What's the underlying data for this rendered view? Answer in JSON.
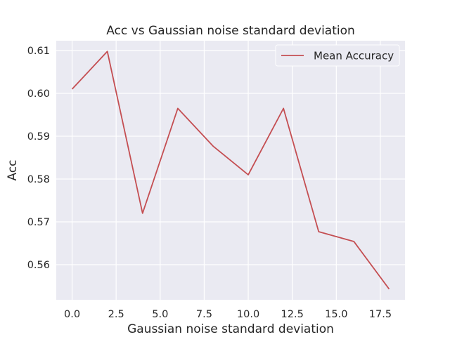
{
  "chart_data": {
    "type": "line",
    "title": "Acc vs Gaussian noise standard deviation",
    "xlabel": "Gaussian noise standard deviation",
    "ylabel": "Acc",
    "x": [
      0,
      2,
      4,
      6,
      8,
      10,
      12,
      14,
      16,
      18
    ],
    "series": [
      {
        "name": "Mean Accuracy",
        "values": [
          0.601,
          0.6098,
          0.572,
          0.5965,
          0.5877,
          0.581,
          0.5965,
          0.5677,
          0.5654,
          0.5543
        ],
        "color": "#c44e52"
      }
    ],
    "xlim": [
      -0.9,
      18.9
    ],
    "ylim": [
      0.5518,
      0.6123
    ],
    "xticks": [
      0,
      2.5,
      5,
      7.5,
      10,
      12.5,
      15,
      17.5
    ],
    "xtick_labels": [
      "0.0",
      "2.5",
      "5.0",
      "7.5",
      "10.0",
      "12.5",
      "15.0",
      "17.5"
    ],
    "yticks": [
      0.56,
      0.57,
      0.58,
      0.59,
      0.6,
      0.61
    ],
    "ytick_labels": [
      "0.56",
      "0.57",
      "0.58",
      "0.59",
      "0.60",
      "0.61"
    ],
    "grid": true,
    "legend": "top-right",
    "background_color": "#eaeaf2",
    "grid_color": "#ffffff"
  }
}
